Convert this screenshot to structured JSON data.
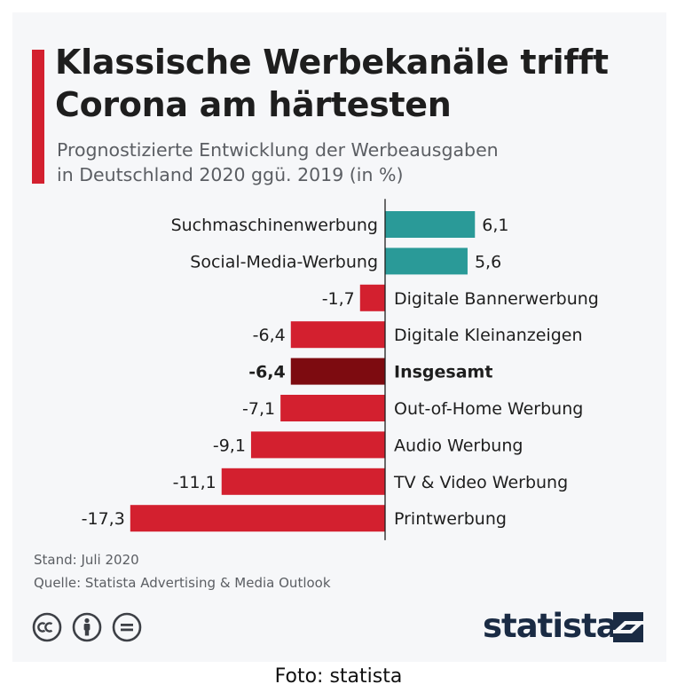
{
  "header": {
    "title_line1": "Klassische Werbekanäle trifft",
    "title_line2": "Corona am härtesten",
    "subtitle_line1": "Prognostizierte Entwicklung der Werbeausgaben",
    "subtitle_line2": "in Deutschland 2020 ggü. 2019 (in %)"
  },
  "footer": {
    "stand": "Stand: Juli 2020",
    "source": "Quelle: Statista Advertising & Media Outlook",
    "logo": "statista"
  },
  "caption": "Foto: statista",
  "colors": {
    "positive": "#2a9a98",
    "negative": "#d3202f",
    "highlight": "#7d0b10",
    "accent": "#d3202f"
  },
  "icons": [
    "creative-commons-icon",
    "attribution-icon",
    "no-derivatives-icon",
    "statista-logo-icon"
  ],
  "chart_data": {
    "type": "bar",
    "orientation": "horizontal",
    "categories": [
      "Suchmaschinenwerbung",
      "Social-Media-Werbung",
      "Digitale Bannerwerbung",
      "Digitale Kleinanzeigen",
      "Insgesamt",
      "Out-of-Home Werbung",
      "Audio Werbung",
      "TV & Video Werbung",
      "Printwerbung"
    ],
    "values": [
      6.1,
      5.6,
      -1.7,
      -6.4,
      -6.4,
      -7.1,
      -9.1,
      -11.1,
      -17.3
    ],
    "value_labels": [
      "6,1",
      "5,6",
      "-1,7",
      "-6,4",
      "-6,4",
      "-7,1",
      "-9,1",
      "-11,1",
      "-17,3"
    ],
    "highlight_index": 4,
    "xlim": [
      -17.3,
      6.1
    ],
    "grid": false
  }
}
